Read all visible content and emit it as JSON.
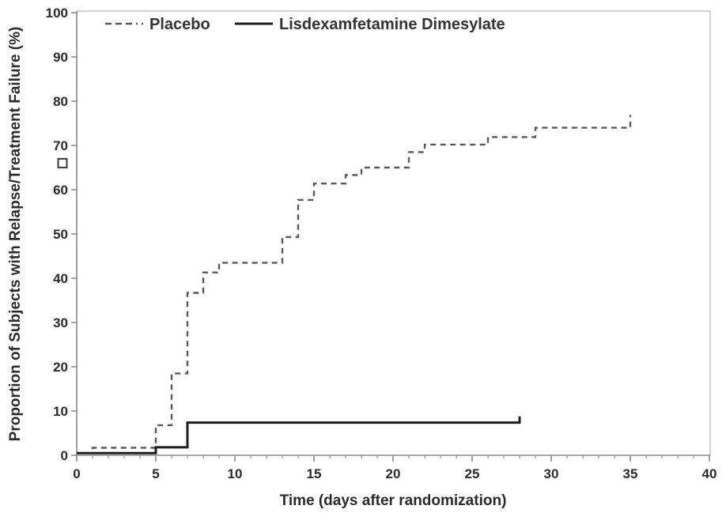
{
  "chart_data": {
    "type": "line",
    "subtype": "kaplan-meier-step",
    "title": "",
    "xlabel": "Time (days after randomization)",
    "ylabel": "Proportion of Subjects with Relapse/Treatment Failure (%)",
    "xlim": [
      0,
      40
    ],
    "ylim": [
      0,
      100
    ],
    "x_major_ticks": [
      0,
      5,
      10,
      15,
      20,
      25,
      30,
      35,
      40
    ],
    "x_minor_tick_step": 1,
    "y_major_ticks": [
      0,
      10,
      20,
      30,
      40,
      50,
      60,
      70,
      80,
      90,
      100
    ],
    "grid": "off",
    "legend_position": "top-inside",
    "colors": {
      "placebo_line": "#58595b",
      "ldx_line": "#1d1d1f",
      "axis": "#8a8a8a",
      "frame": "#b5b5b5",
      "text": "#2b2b2b"
    },
    "legend": [
      {
        "label": "Placebo",
        "style": "dashed"
      },
      {
        "label": "Lisdexamfetamine Dimesylate",
        "style": "solid"
      }
    ],
    "series": [
      {
        "name": "Placebo",
        "style": "dashed",
        "color": "#58595b",
        "stroke_width": 2.4,
        "steps": [
          [
            0,
            0.5
          ],
          [
            1,
            1.7
          ],
          [
            5,
            6.8
          ],
          [
            6,
            18.5
          ],
          [
            7,
            36.7
          ],
          [
            8,
            41.3
          ],
          [
            9,
            43.5
          ],
          [
            13,
            49.3
          ],
          [
            14,
            57.7
          ],
          [
            15,
            61.4
          ],
          [
            17,
            63.3
          ],
          [
            18,
            65.0
          ],
          [
            21,
            68.5
          ],
          [
            22,
            70.2
          ],
          [
            26,
            71.9
          ],
          [
            29,
            74.0
          ],
          [
            35,
            76.9
          ]
        ]
      },
      {
        "name": "Lisdexamfetamine Dimesylate",
        "style": "solid",
        "color": "#1d1d1f",
        "stroke_width": 3,
        "steps": [
          [
            0,
            0.5
          ],
          [
            5,
            1.8
          ],
          [
            7,
            7.4
          ],
          [
            28,
            8.8
          ]
        ]
      }
    ],
    "annotations": [
      {
        "type": "open-square-marker",
        "x_day": -0.9,
        "y_pct": 66,
        "size": 11,
        "color": "#3a3a3a"
      }
    ]
  }
}
